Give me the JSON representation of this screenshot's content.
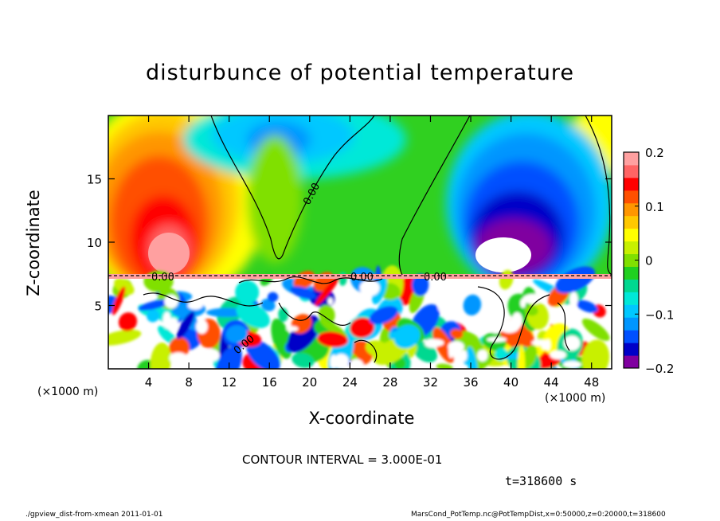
{
  "title": "disturbunce of potential temperature",
  "xlabel": "X-coordinate",
  "ylabel": "Z-coordinate",
  "x_unit_left": "(×1000 m)",
  "x_unit_right": "(×1000 m)",
  "contour_note": "CONTOUR INTERVAL = 3.000E-01",
  "time_note": "t=318600 s",
  "footer_left": "./gpview_dist-from-xmean  2011-01-01",
  "footer_right": "MarsCond_PotTemp.nc@PotTempDist,x=0:50000,z=0:20000,t=318600",
  "chart_data": {
    "type": "heatmap",
    "title": "disturbunce of potential temperature",
    "xlabel": "X-coordinate",
    "ylabel": "Z-coordinate",
    "x_unit": "(×1000 m)",
    "xlim": [
      0,
      50
    ],
    "ylim": [
      0,
      20
    ],
    "x_ticks": [
      4,
      8,
      12,
      16,
      20,
      24,
      28,
      32,
      36,
      40,
      44,
      48
    ],
    "y_ticks": [
      5,
      10,
      15
    ],
    "colorbar": {
      "range": [
        -0.2,
        0.2
      ],
      "ticks": [
        {
          "value": 0.2,
          "label": "0.2"
        },
        {
          "value": 0.1,
          "label": "0.1"
        },
        {
          "value": 0,
          "label": "0"
        },
        {
          "value": -0.1,
          "label": "−0.1"
        },
        {
          "value": -0.2,
          "label": "−0.2"
        }
      ],
      "colors": [
        "#8000a0",
        "#0000c8",
        "#0050ff",
        "#0096ff",
        "#00c8ff",
        "#00e8d8",
        "#00d890",
        "#20d020",
        "#80e000",
        "#c8f000",
        "#ffff00",
        "#ffc800",
        "#ff9600",
        "#ff5000",
        "#ff0000",
        "#ff6464",
        "#ffa0a0"
      ]
    },
    "contour_labels": [
      "0.00",
      "0.00",
      "0.00",
      "0.00",
      "0.00"
    ],
    "contour_interval": "3.000E-01",
    "time": "t=318600 s"
  }
}
